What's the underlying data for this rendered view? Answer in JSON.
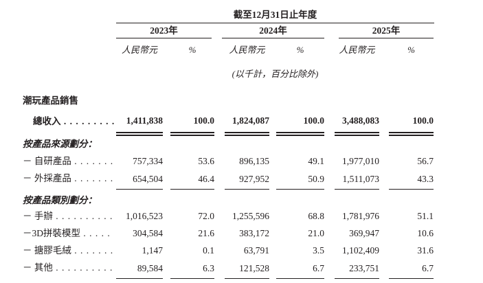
{
  "page": {
    "period_header": "截至12月31日止年度",
    "unit_note": "(以千計，百分比除外)",
    "year_groups": [
      {
        "year": "2023年",
        "currency_label": "人民幣元",
        "percent_label": "%"
      },
      {
        "year": "2024年",
        "currency_label": "人民幣元",
        "percent_label": "%"
      },
      {
        "year": "2025年",
        "currency_label": "人民幣元",
        "percent_label": "%"
      }
    ],
    "rows": [
      {
        "type": "group-title",
        "label": "潮玩產品銷售"
      },
      {
        "type": "total",
        "label": "總收入",
        "dots": ". . . . . . . . .",
        "values": [
          "1,411,838",
          "100.0",
          "1,824,087",
          "100.0",
          "3,488,083",
          "100.0"
        ]
      },
      {
        "type": "section",
        "label": "按產品來源劃分："
      },
      {
        "type": "data",
        "label": "－ 自研產品",
        "dots": ". . . . . . .",
        "values": [
          "757,334",
          "53.6",
          "896,135",
          "49.1",
          "1,977,010",
          "56.7"
        ]
      },
      {
        "type": "data",
        "underline": true,
        "label": "－ 外採產品",
        "dots": ". . . . . . .",
        "values": [
          "654,504",
          "46.4",
          "927,952",
          "50.9",
          "1,511,073",
          "43.3"
        ]
      },
      {
        "type": "section",
        "label": "按產品類別劃分："
      },
      {
        "type": "data",
        "label": "－ 手辦",
        "dots": ". . . . . . . . . .",
        "values": [
          "1,016,523",
          "72.0",
          "1,255,596",
          "68.8",
          "1,781,976",
          "51.1"
        ]
      },
      {
        "type": "data",
        "label": "－3D拼裝模型",
        "dots": ". . . . .",
        "values": [
          "304,584",
          "21.6",
          "383,172",
          "21.0",
          "369,947",
          "10.6"
        ]
      },
      {
        "type": "data",
        "label": "－ 搪膠毛絨",
        "dots": ". . . . . . .",
        "values": [
          "1,147",
          "0.1",
          "63,791",
          "3.5",
          "1,102,409",
          "31.6"
        ]
      },
      {
        "type": "data",
        "underline": true,
        "label": "－ 其他",
        "dots": ". . . . . . . . . . .",
        "values": [
          "89,584",
          "6.3",
          "121,528",
          "6.7",
          "233,751",
          "6.7"
        ]
      }
    ]
  }
}
